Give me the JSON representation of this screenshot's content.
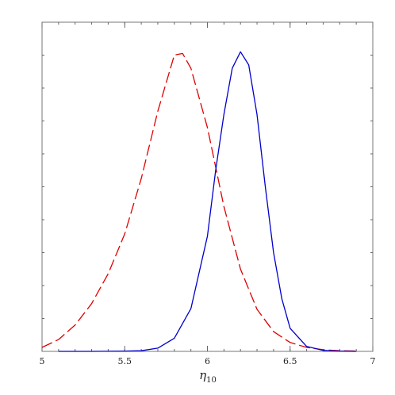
{
  "chart_data": {
    "type": "line",
    "xlabel": {
      "symbol": "η",
      "subscript": "10"
    },
    "xlim": [
      5,
      7
    ],
    "xticks": [
      5,
      5.5,
      6,
      6.5,
      7
    ],
    "ylim": [
      0,
      1
    ],
    "series": [
      {
        "color": "#e00000",
        "dash": true,
        "x": [
          5.0,
          5.1,
          5.2,
          5.3,
          5.4,
          5.5,
          5.6,
          5.7,
          5.8,
          5.85,
          5.9,
          6.0,
          6.1,
          6.2,
          6.3,
          6.4,
          6.5,
          6.6,
          6.7,
          6.8,
          6.9
        ],
        "values": [
          0.012,
          0.036,
          0.08,
          0.145,
          0.236,
          0.357,
          0.525,
          0.73,
          0.9,
          0.905,
          0.86,
          0.68,
          0.44,
          0.25,
          0.128,
          0.06,
          0.027,
          0.012,
          0.005,
          0.002,
          0.001
        ]
      },
      {
        "color": "#0000cc",
        "dash": false,
        "x": [
          5.1,
          5.3,
          5.5,
          5.6,
          5.7,
          5.8,
          5.9,
          6.0,
          6.05,
          6.1,
          6.15,
          6.2,
          6.25,
          6.3,
          6.35,
          6.4,
          6.45,
          6.5,
          6.6,
          6.7,
          6.8,
          6.9
        ],
        "values": [
          0,
          0,
          0.001,
          0.002,
          0.01,
          0.04,
          0.13,
          0.35,
          0.55,
          0.72,
          0.86,
          0.91,
          0.87,
          0.72,
          0.5,
          0.3,
          0.16,
          0.07,
          0.015,
          0.003,
          0.001,
          0
        ]
      }
    ]
  }
}
